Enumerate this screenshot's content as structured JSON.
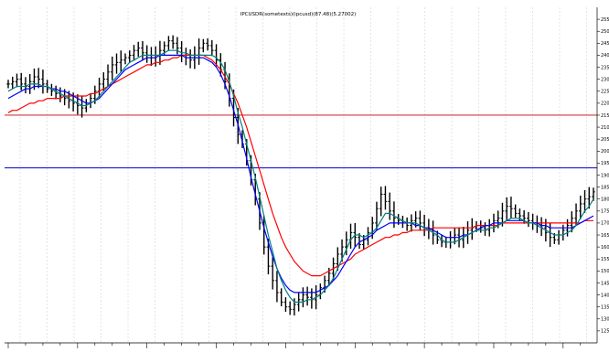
{
  "chart_data": {
    "type": "ohlc",
    "title": "IPCUSDR(sometexts)(ipcusd)(87.48)(5.27002)",
    "xlabel": "",
    "ylabel": "",
    "ylim": [
      120,
      260
    ],
    "y_ticks": [
      125,
      130,
      135,
      140,
      145,
      150,
      155,
      160,
      165,
      170,
      175,
      180,
      185,
      190,
      195,
      200,
      205,
      210,
      215,
      220,
      225,
      230,
      235,
      240,
      245,
      250,
      255
    ],
    "grid": true,
    "legend": "none",
    "horizontal_lines": [
      {
        "value": 215,
        "color": "#c00000"
      },
      {
        "value": 193,
        "color": "#0000c0"
      }
    ],
    "colors": {
      "bars": "#000000",
      "ma_fast": "#008080",
      "ma_mid": "#0000ff",
      "ma_slow": "#ff0000",
      "hline_red": "#c00000",
      "hline_blue": "#0000c0",
      "grid": "#c8c8c8"
    },
    "x_count": 136,
    "close": [
      228,
      229,
      230,
      228,
      227,
      229,
      231,
      230,
      228,
      226,
      225,
      224,
      223,
      222,
      221,
      220,
      219,
      218,
      220,
      222,
      225,
      228,
      230,
      233,
      236,
      237,
      238,
      239,
      240,
      242,
      243,
      241,
      240,
      239,
      240,
      242,
      244,
      246,
      245,
      243,
      240,
      239,
      238,
      240,
      243,
      245,
      244,
      242,
      238,
      234,
      229,
      222,
      214,
      207,
      203,
      196,
      188,
      180,
      170,
      160,
      152,
      146,
      141,
      137,
      135,
      134,
      136,
      138,
      140,
      139,
      138,
      140,
      143,
      146,
      149,
      153,
      157,
      160,
      163,
      166,
      164,
      161,
      163,
      166,
      170,
      176,
      182,
      179,
      175,
      172,
      171,
      170,
      169,
      171,
      172,
      170,
      168,
      167,
      165,
      163,
      162,
      162,
      164,
      165,
      163,
      165,
      167,
      168,
      169,
      168,
      167,
      169,
      171,
      172,
      175,
      177,
      176,
      174,
      173,
      172,
      171,
      170,
      169,
      168,
      166,
      164,
      163,
      165,
      167,
      169,
      172,
      175,
      178,
      180,
      181,
      183
    ],
    "ma_fast": [
      225,
      226,
      227,
      227,
      227,
      228,
      228,
      228,
      227,
      227,
      226,
      225,
      224,
      223,
      222,
      221,
      220,
      219,
      219,
      220,
      221,
      223,
      225,
      227,
      229,
      231,
      233,
      235,
      237,
      238,
      239,
      240,
      240,
      240,
      240,
      240,
      241,
      242,
      242,
      242,
      241,
      241,
      240,
      240,
      240,
      240,
      240,
      240,
      239,
      237,
      234,
      229,
      223,
      216,
      210,
      203,
      196,
      189,
      181,
      173,
      165,
      158,
      151,
      146,
      142,
      139,
      137,
      137,
      137,
      138,
      138,
      139,
      140,
      142,
      144,
      147,
      151,
      155,
      159,
      163,
      165,
      165,
      164,
      165,
      166,
      168,
      171,
      174,
      174,
      173,
      172,
      171,
      170,
      170,
      170,
      169,
      168,
      167,
      166,
      165,
      163,
      162,
      162,
      162,
      163,
      164,
      165,
      166,
      167,
      167,
      167,
      168,
      168,
      169,
      170,
      171,
      172,
      172,
      172,
      171,
      170,
      170,
      169,
      168,
      167,
      166,
      165,
      165,
      165,
      166,
      167,
      169,
      172,
      175,
      177,
      180
    ],
    "ma_mid": [
      222,
      223,
      224,
      225,
      226,
      226,
      227,
      227,
      227,
      227,
      226,
      226,
      225,
      225,
      224,
      223,
      222,
      221,
      220,
      220,
      221,
      222,
      224,
      226,
      228,
      230,
      232,
      234,
      235,
      236,
      237,
      238,
      239,
      239,
      239,
      240,
      240,
      240,
      240,
      240,
      240,
      239,
      239,
      239,
      239,
      239,
      238,
      237,
      235,
      232,
      228,
      223,
      217,
      211,
      204,
      197,
      189,
      182,
      175,
      168,
      162,
      156,
      151,
      147,
      144,
      142,
      141,
      141,
      141,
      141,
      141,
      141,
      142,
      143,
      144,
      146,
      148,
      151,
      154,
      157,
      160,
      162,
      163,
      164,
      165,
      167,
      168,
      169,
      170,
      170,
      170,
      170,
      170,
      170,
      169,
      169,
      168,
      168,
      167,
      166,
      165,
      164,
      164,
      164,
      164,
      165,
      165,
      166,
      167,
      168,
      169,
      169,
      170,
      170,
      170,
      171,
      171,
      171,
      171,
      171,
      170,
      170,
      170,
      169,
      169,
      168,
      168,
      168,
      168,
      168,
      168,
      169,
      170,
      171,
      172,
      173
    ],
    "ma_slow": [
      216,
      217,
      217,
      218,
      219,
      220,
      220,
      221,
      221,
      222,
      222,
      222,
      222,
      223,
      223,
      223,
      223,
      223,
      223,
      224,
      224,
      225,
      226,
      227,
      228,
      229,
      230,
      231,
      232,
      233,
      234,
      235,
      236,
      236,
      237,
      237,
      238,
      238,
      239,
      239,
      240,
      240,
      240,
      240,
      240,
      240,
      239,
      238,
      236,
      234,
      231,
      228,
      224,
      220,
      215,
      210,
      204,
      198,
      192,
      186,
      180,
      174,
      169,
      164,
      160,
      157,
      154,
      152,
      150,
      149,
      148,
      148,
      148,
      149,
      150,
      151,
      152,
      153,
      154,
      155,
      157,
      158,
      159,
      160,
      161,
      162,
      163,
      164,
      164,
      165,
      165,
      166,
      166,
      167,
      167,
      167,
      167,
      167,
      168,
      168,
      168,
      168,
      168,
      168,
      168,
      168,
      168,
      168,
      169,
      169,
      169,
      169,
      169,
      169,
      170,
      170,
      170,
      170,
      170,
      170,
      170,
      170,
      170,
      170,
      170,
      170,
      170,
      170,
      170,
      170,
      170,
      170,
      170,
      171,
      171,
      171
    ]
  }
}
